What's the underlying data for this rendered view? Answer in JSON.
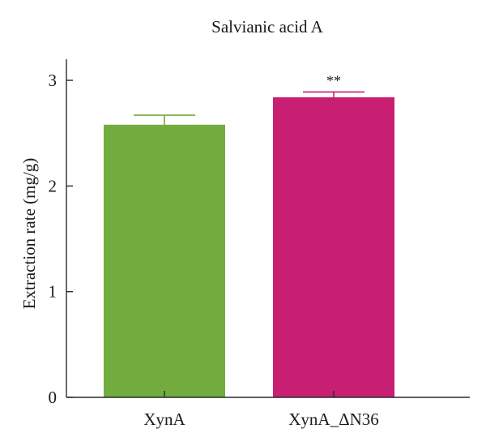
{
  "chart_data": {
    "type": "bar",
    "title": "Salvianic acid A",
    "xlabel": "",
    "ylabel": "Extraction rate (mg/g)",
    "categories": [
      "XynA",
      "XynA_ΔN36"
    ],
    "values": [
      2.58,
      2.84
    ],
    "errors": [
      0.09,
      0.05
    ],
    "significance": [
      "",
      "**"
    ],
    "colors": [
      "#72ac3f",
      "#c91f73"
    ],
    "ylim": [
      0,
      3.2
    ],
    "yticks": [
      0,
      1,
      2,
      3
    ],
    "ytick_labels": [
      "0",
      "1",
      "2",
      "3"
    ],
    "grid": false,
    "legend": "none"
  }
}
